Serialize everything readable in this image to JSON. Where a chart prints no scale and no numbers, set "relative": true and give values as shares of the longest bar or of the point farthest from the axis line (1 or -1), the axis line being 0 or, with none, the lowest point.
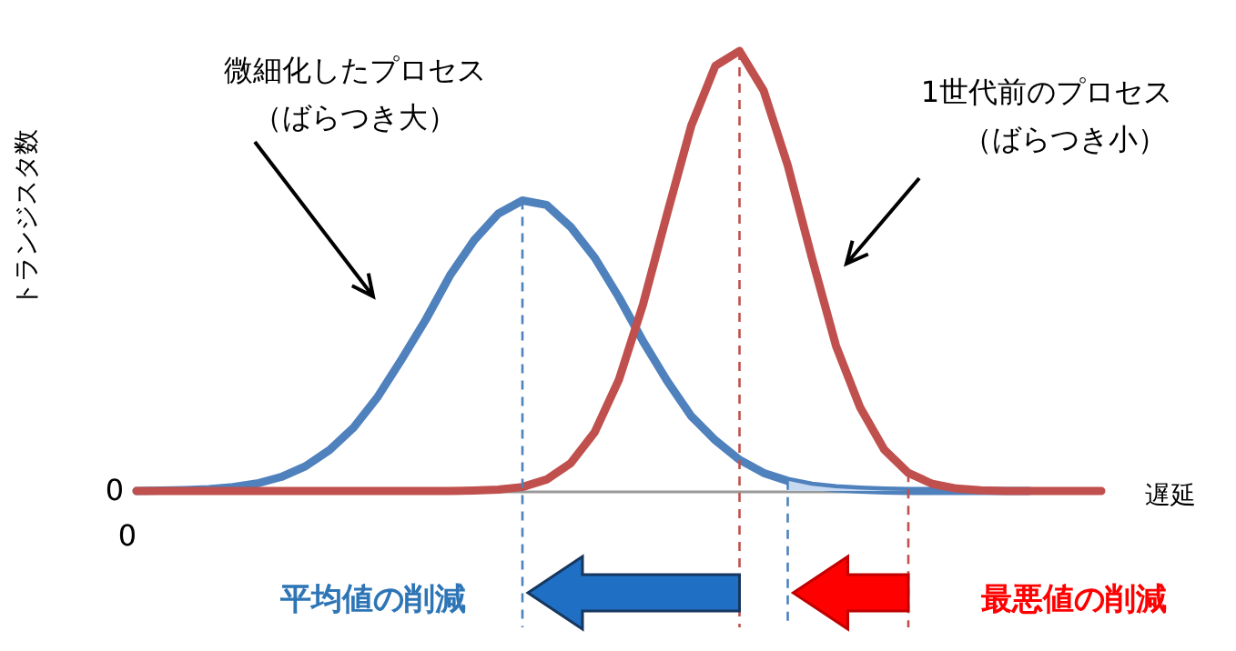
{
  "chart_data": {
    "type": "line",
    "relative": true,
    "xlabel": "遅延",
    "ylabel": "トランジスタ数",
    "categories": [
      null,
      null,
      null,
      null,
      null,
      null,
      null,
      null,
      null,
      null,
      null,
      null,
      null,
      null,
      null,
      null,
      null,
      null,
      null,
      null,
      null,
      null,
      null,
      null,
      null,
      null,
      null,
      null,
      null,
      null,
      null,
      null,
      null,
      null,
      null,
      null,
      null,
      null,
      null,
      null,
      null
    ],
    "series": [
      {
        "color": "#4f81bd",
        "values": [
          0,
          0.001,
          0.002,
          0.004,
          0.009,
          0.017,
          0.032,
          0.056,
          0.093,
          0.144,
          0.214,
          0.3,
          0.39,
          0.49,
          0.57,
          0.63,
          0.66,
          0.65,
          0.6,
          0.53,
          0.44,
          0.34,
          0.25,
          0.17,
          0.115,
          0.071,
          0.041,
          0.023,
          0.012,
          0.006,
          0.003,
          0.001,
          0,
          0,
          0,
          0,
          0,
          0,
          null,
          null,
          null
        ]
      },
      {
        "color": "#c0504d",
        "values": [
          0,
          0,
          0,
          0,
          0,
          0,
          0,
          0,
          0,
          0,
          0,
          0,
          0,
          0,
          0.001,
          0.003,
          0.009,
          0.026,
          0.063,
          0.134,
          0.253,
          0.424,
          0.63,
          0.83,
          0.966,
          1,
          0.91,
          0.74,
          0.53,
          0.33,
          0.19,
          0.094,
          0.041,
          0.016,
          0.0055,
          0.0017,
          0,
          0,
          0,
          0,
          0
        ]
      }
    ],
    "annotations": [
      "微細化したプロセス",
      "（ばらつき大）",
      "1世代前のプロセス",
      "（ばらつき小）",
      "平均値の削減",
      "最悪値の削減",
      "0",
      "0"
    ]
  }
}
